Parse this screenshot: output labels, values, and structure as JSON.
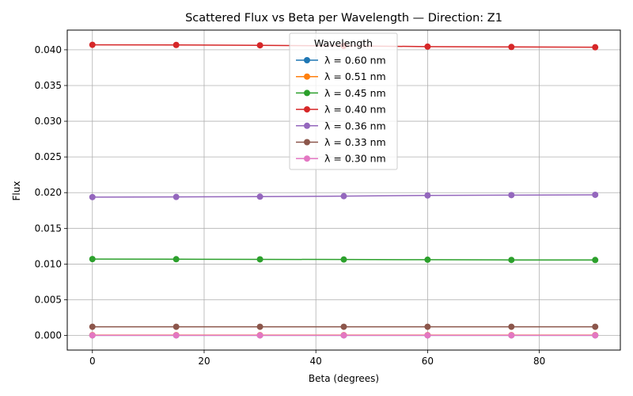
{
  "chart_data": {
    "type": "line",
    "title": "Scattered Flux vs Beta per Wavelength — Direction: Z1",
    "xlabel": "Beta (degrees)",
    "ylabel": "Flux",
    "xlim": [
      -4.5,
      94.5
    ],
    "ylim": [
      -0.00204,
      0.04276
    ],
    "x_ticks": [
      0,
      20,
      40,
      60,
      80
    ],
    "x_tick_labels": [
      "0",
      "20",
      "40",
      "60",
      "80"
    ],
    "y_ticks": [
      0,
      0.005,
      0.01,
      0.015,
      0.02,
      0.025,
      0.03,
      0.035,
      0.04
    ],
    "y_tick_labels": [
      "0.000",
      "0.005",
      "0.010",
      "0.015",
      "0.020",
      "0.025",
      "0.030",
      "0.035",
      "0.040"
    ],
    "grid": true,
    "legend": {
      "title": "Wavelength",
      "placement": "top-center"
    },
    "x": [
      0,
      15,
      30,
      45,
      60,
      75,
      90
    ],
    "series": [
      {
        "name": "λ = 0.60 nm",
        "color": "#1f77b4",
        "values": [
          3e-05,
          3e-05,
          3e-05,
          3e-05,
          3e-05,
          3e-05,
          3e-05
        ]
      },
      {
        "name": "λ = 0.51 nm",
        "color": "#ff7f0e",
        "values": [
          5e-05,
          5e-05,
          5e-05,
          5e-05,
          5e-05,
          5e-05,
          5e-05
        ]
      },
      {
        "name": "λ = 0.45 nm",
        "color": "#2ca02c",
        "values": [
          0.0107,
          0.01068,
          0.01066,
          0.01064,
          0.01061,
          0.01058,
          0.01057
        ]
      },
      {
        "name": "λ = 0.40 nm",
        "color": "#d62728",
        "values": [
          0.0407,
          0.04068,
          0.04063,
          0.04055,
          0.04045,
          0.0404,
          0.04036
        ]
      },
      {
        "name": "λ = 0.36 nm",
        "color": "#9467bd",
        "values": [
          0.01938,
          0.0194,
          0.01944,
          0.01951,
          0.01961,
          0.01966,
          0.0197
        ]
      },
      {
        "name": "λ = 0.33 nm",
        "color": "#8c564b",
        "values": [
          0.00122,
          0.00122,
          0.00122,
          0.00122,
          0.00122,
          0.00122,
          0.00122
        ]
      },
      {
        "name": "λ = 0.30 nm",
        "color": "#e377c2",
        "values": [
          2e-05,
          2e-05,
          2e-05,
          2e-05,
          2e-05,
          2e-05,
          2e-05
        ]
      }
    ]
  }
}
